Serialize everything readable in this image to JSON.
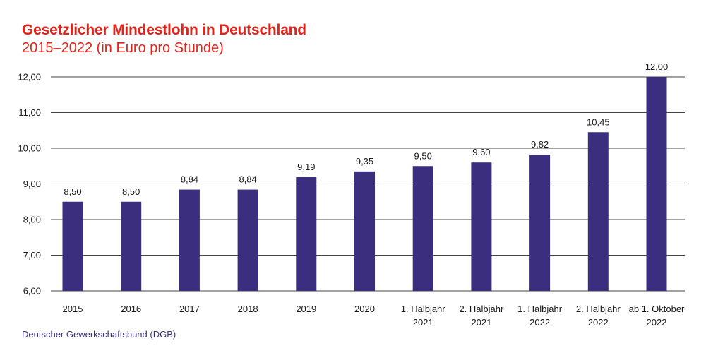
{
  "chart_data": {
    "type": "bar",
    "title": "Gesetzlicher Mindestlohn in Deutschland",
    "subtitle": "2015–2022 (in Euro pro Stunde)",
    "source": "Deutscher Gewerkschaftsbund (DGB)",
    "categories": [
      [
        "2015"
      ],
      [
        "2016"
      ],
      [
        "2017"
      ],
      [
        "2018"
      ],
      [
        "2019"
      ],
      [
        "2020"
      ],
      [
        "1. Halbjahr",
        "2021"
      ],
      [
        "2. Halbjahr",
        "2021"
      ],
      [
        "1. Halbjahr",
        "2022"
      ],
      [
        "2. Halbjahr",
        "2022"
      ],
      [
        "ab 1. Oktober",
        "2022"
      ]
    ],
    "values": [
      8.5,
      8.5,
      8.84,
      8.84,
      9.19,
      9.35,
      9.5,
      9.6,
      9.82,
      10.45,
      12.0
    ],
    "value_labels": [
      "8,50",
      "8,50",
      "8,84",
      "8,84",
      "9,19",
      "9,35",
      "9,50",
      "9,60",
      "9,82",
      "10,45",
      "12,00"
    ],
    "yticks": [
      6,
      7,
      8,
      9,
      10,
      11,
      12
    ],
    "ytick_labels": [
      "6,00",
      "7,00",
      "8,00",
      "9,00",
      "10,00",
      "11,00",
      "12,00"
    ],
    "ylim": [
      6,
      12
    ],
    "xlabel": "",
    "ylabel": "",
    "grid": true,
    "colors": {
      "bar": "#3b2e7e",
      "title": "#e2231a",
      "source": "#3b2e7e",
      "grid": "#444444"
    }
  }
}
